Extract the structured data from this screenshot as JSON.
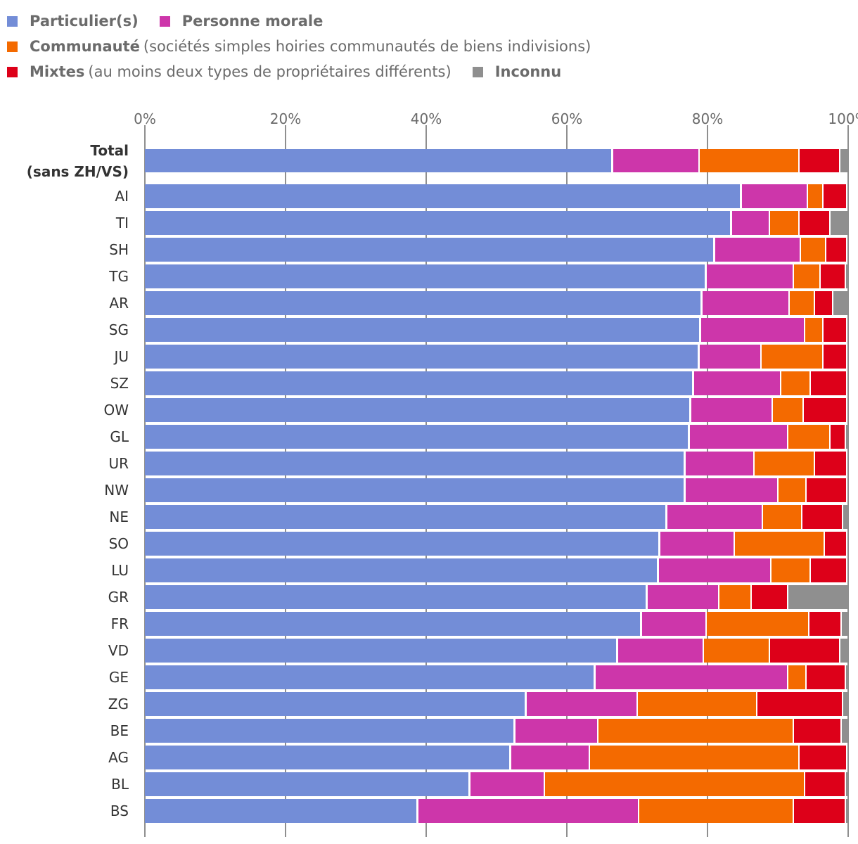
{
  "legend": [
    {
      "key": "particuliers",
      "label": "Particulier(s)",
      "note": "",
      "color": "#738dd7"
    },
    {
      "key": "personne_morale",
      "label": "Personne morale",
      "note": "",
      "color": "#cd36aa"
    },
    {
      "key": "communaute",
      "label": "Communauté",
      "note": "(sociétés simples hoiries communautés de biens indivisions)",
      "color": "#f46a00"
    },
    {
      "key": "mixtes",
      "label": "Mixtes",
      "note": "(au moins deux types de propriétaires différents)",
      "color": "#dd0019"
    },
    {
      "key": "inconnu",
      "label": "Inconnu",
      "note": "",
      "color": "#8f8f8f"
    }
  ],
  "chart_data": {
    "type": "bar",
    "orientation": "horizontal",
    "stacked": true,
    "normalized": true,
    "title": "",
    "xlabel": "",
    "ylabel": "",
    "xlim": [
      0,
      100
    ],
    "xticks": [
      "0%",
      "20%",
      "40%",
      "60%",
      "80%",
      "100%"
    ],
    "xtick_values": [
      0,
      20,
      40,
      60,
      80,
      100
    ],
    "axis_position": "top",
    "grid": true,
    "legend_position": "top-left",
    "categories": [
      "Total (sans ZH/VS)",
      "AI",
      "TI",
      "SH",
      "TG",
      "AR",
      "SG",
      "JU",
      "SZ",
      "OW",
      "GL",
      "UR",
      "NW",
      "NE",
      "SO",
      "LU",
      "GR",
      "FR",
      "VD",
      "GE",
      "ZG",
      "BE",
      "AG",
      "BL",
      "BS"
    ],
    "category_label_lines": [
      [
        "Total",
        "(sans ZH/VS)"
      ],
      [
        "AI"
      ],
      [
        "TI"
      ],
      [
        "SH"
      ],
      [
        "TG"
      ],
      [
        "AR"
      ],
      [
        "SG"
      ],
      [
        "JU"
      ],
      [
        "SZ"
      ],
      [
        "OW"
      ],
      [
        "GL"
      ],
      [
        "UR"
      ],
      [
        "NW"
      ],
      [
        "NE"
      ],
      [
        "SO"
      ],
      [
        "LU"
      ],
      [
        "GR"
      ],
      [
        "FR"
      ],
      [
        "VD"
      ],
      [
        "GE"
      ],
      [
        "ZG"
      ],
      [
        "BE"
      ],
      [
        "AG"
      ],
      [
        "BL"
      ],
      [
        "BS"
      ]
    ],
    "bold_categories": [
      "Total (sans ZH/VS)"
    ],
    "series": [
      {
        "name": "Particulier(s)",
        "color": "#738dd7",
        "values": [
          66.5,
          84.8,
          83.4,
          81.0,
          79.8,
          79.2,
          79.0,
          78.8,
          78.0,
          77.6,
          77.4,
          76.8,
          76.8,
          74.2,
          73.2,
          73.0,
          71.4,
          70.6,
          67.2,
          64.0,
          54.2,
          52.6,
          52.0,
          46.2,
          38.8
        ]
      },
      {
        "name": "Personne morale",
        "color": "#cd36aa",
        "values": [
          12.3,
          9.4,
          5.4,
          12.2,
          12.4,
          12.4,
          14.8,
          8.8,
          12.4,
          11.6,
          14.0,
          9.8,
          13.2,
          13.6,
          10.6,
          16.0,
          10.2,
          9.2,
          12.2,
          27.4,
          15.8,
          11.8,
          11.2,
          10.6,
          31.4
        ]
      },
      {
        "name": "Communauté",
        "color": "#f46a00",
        "values": [
          14.2,
          2.2,
          4.2,
          3.6,
          3.8,
          3.6,
          2.6,
          8.8,
          4.2,
          4.4,
          6.0,
          8.6,
          4.0,
          5.6,
          12.8,
          5.6,
          4.6,
          14.6,
          9.4,
          2.6,
          17.0,
          27.8,
          29.8,
          37.0,
          22.0
        ]
      },
      {
        "name": "Mixtes",
        "color": "#dd0019",
        "values": [
          5.8,
          3.4,
          4.4,
          3.0,
          3.6,
          2.6,
          3.4,
          3.4,
          5.2,
          6.2,
          2.2,
          4.6,
          5.8,
          5.8,
          3.2,
          5.2,
          5.2,
          4.6,
          10.0,
          5.6,
          12.2,
          6.8,
          6.8,
          5.8,
          7.4
        ]
      },
      {
        "name": "Inconnu",
        "color": "#8f8f8f",
        "values": [
          1.2,
          0.2,
          2.6,
          0.2,
          0.4,
          2.2,
          0.2,
          0.2,
          0.2,
          0.2,
          0.4,
          0.2,
          0.2,
          0.8,
          0.2,
          0.2,
          8.6,
          1.0,
          1.2,
          0.4,
          0.8,
          1.0,
          0.2,
          0.4,
          0.4
        ]
      }
    ]
  }
}
